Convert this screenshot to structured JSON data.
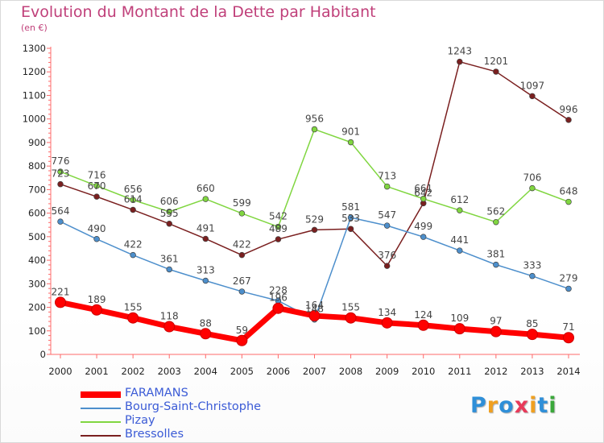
{
  "header": {
    "title": "Evolution du Montant de la Dette par Habitant",
    "unit": "(en €)"
  },
  "logo": {
    "text": "Proxiti",
    "letters": [
      {
        "ch": "P",
        "color": "#2f8fd8"
      },
      {
        "ch": "r",
        "color": "#f0a020"
      },
      {
        "ch": "o",
        "color": "#2f8fd8"
      },
      {
        "ch": "x",
        "color": "#e83a5a"
      },
      {
        "ch": "i",
        "color": "#f0a020"
      },
      {
        "ch": "t",
        "color": "#2f8fd8"
      },
      {
        "ch": "i",
        "color": "#3aa83a"
      }
    ]
  },
  "chart_data": {
    "type": "line",
    "title": "Evolution du Montant de la Dette par Habitant",
    "ylabel": "(en €)",
    "ylim": [
      0,
      1300
    ],
    "yticks": [
      0,
      100,
      200,
      300,
      400,
      500,
      600,
      700,
      800,
      900,
      1000,
      1100,
      1200,
      1300
    ],
    "grid": false,
    "legend": "bottom-left",
    "x": [
      2000,
      2001,
      2002,
      2003,
      2004,
      2005,
      2006,
      2007,
      2008,
      2009,
      2010,
      2011,
      2012,
      2013,
      2014
    ],
    "series": [
      {
        "name": "FARAMANS",
        "color": "#ff0000",
        "values": [
          221,
          189,
          155,
          118,
          88,
          59,
          196,
          164,
          155,
          134,
          124,
          109,
          97,
          85,
          71
        ]
      },
      {
        "name": "Bourg-Saint-Christophe",
        "color": "#4d8fcc",
        "values": [
          564,
          490,
          422,
          361,
          313,
          267,
          228,
          148,
          581,
          547,
          499,
          441,
          381,
          333,
          279
        ]
      },
      {
        "name": "Pizay",
        "color": "#80d640",
        "values": [
          776,
          716,
          656,
          606,
          660,
          599,
          542,
          956,
          901,
          713,
          661,
          612,
          562,
          706,
          648
        ]
      },
      {
        "name": "Bressolles",
        "color": "#7a1f1f",
        "values": [
          723,
          670,
          614,
          555,
          491,
          422,
          489,
          529,
          533,
          376,
          642,
          1243,
          1201,
          1097,
          996
        ]
      }
    ]
  }
}
